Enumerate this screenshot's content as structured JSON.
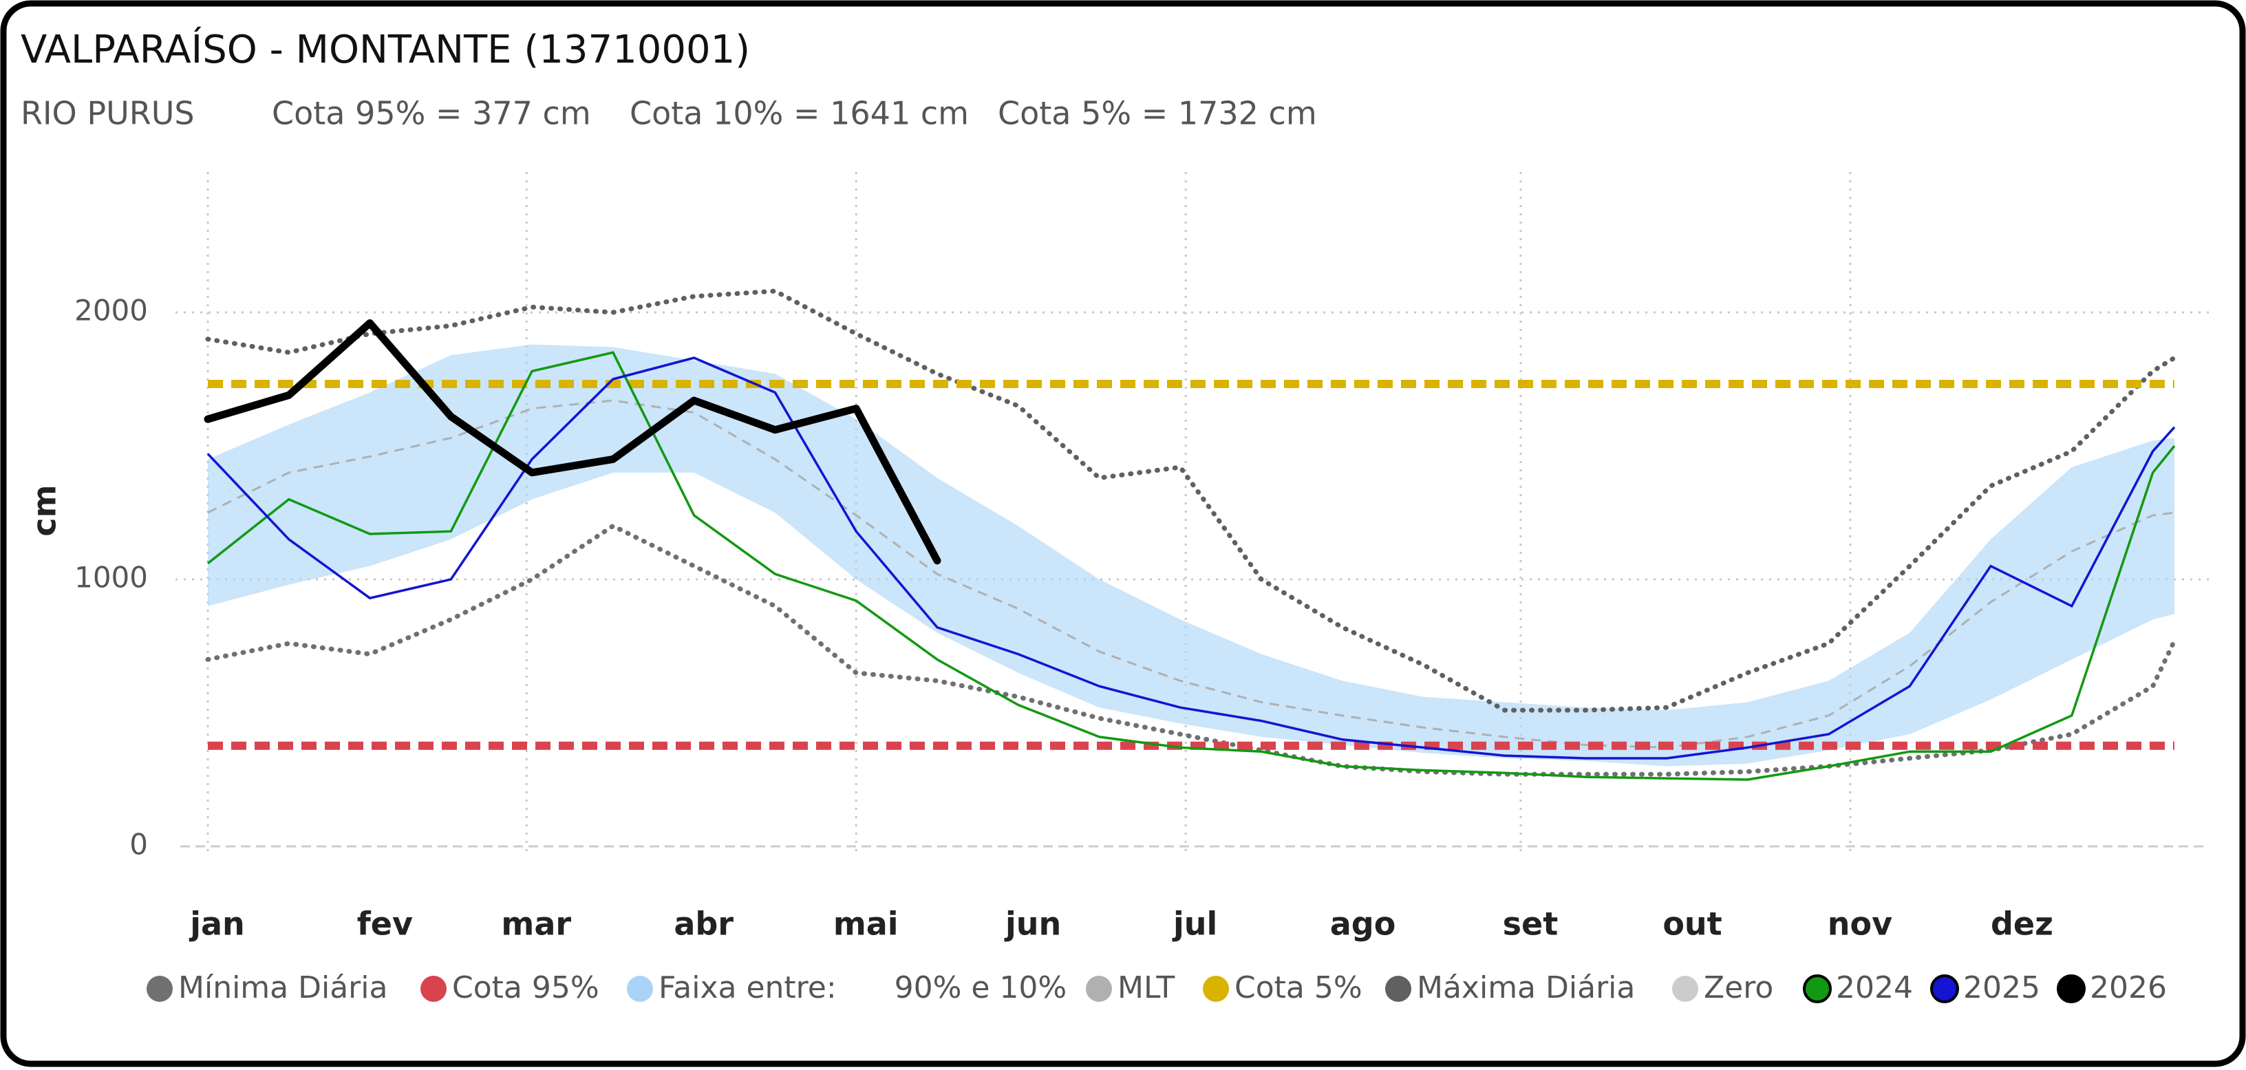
{
  "chart_data": {
    "type": "line",
    "title": "VALPARAÍSO - MONTANTE (13710001)",
    "subtitle": [
      "RIO PURUS",
      "Cota 95% = 377 cm",
      "Cota 10% = 1641 cm",
      "Cota 5% = 1732 cm"
    ],
    "y_label": "cm",
    "x": [
      1,
      16,
      31,
      46,
      61,
      76,
      91,
      106,
      121,
      136,
      151,
      166,
      181,
      196,
      211,
      226,
      241,
      256,
      271,
      286,
      301,
      316,
      331,
      346,
      361,
      365
    ],
    "xlim": [
      1,
      365
    ],
    "xticks": [
      {
        "value": 1,
        "label": "jan"
      },
      {
        "value": 32,
        "label": "fev"
      },
      {
        "value": 60,
        "label": "mar"
      },
      {
        "value": 91,
        "label": "abr"
      },
      {
        "value": 121,
        "label": "mai"
      },
      {
        "value": 152,
        "label": "jun"
      },
      {
        "value": 182,
        "label": "jul"
      },
      {
        "value": 213,
        "label": "ago"
      },
      {
        "value": 244,
        "label": "set"
      },
      {
        "value": 274,
        "label": "out"
      },
      {
        "value": 305,
        "label": "nov"
      },
      {
        "value": 335,
        "label": "dez"
      }
    ],
    "ylim": [
      0,
      2500
    ],
    "yticks": [
      0,
      1000,
      2000
    ],
    "grid": true,
    "series": [
      {
        "name": "Mínima Diária",
        "color": "#707070",
        "style": "dotted",
        "values": [
          700,
          760,
          720,
          850,
          1000,
          1200,
          1050,
          900,
          650,
          620,
          560,
          480,
          420,
          360,
          300,
          280,
          270,
          270,
          270,
          280,
          300,
          330,
          360,
          420,
          600,
          770
        ]
      },
      {
        "name": "Cota 95%",
        "color": "#d9434e",
        "style": "hline",
        "value": 377
      },
      {
        "name": "Faixa entre:      90% e 10%",
        "color": "#a9d3f7",
        "style": "band",
        "upper": [
          1450,
          1580,
          1700,
          1840,
          1880,
          1870,
          1820,
          1770,
          1600,
          1380,
          1200,
          1000,
          850,
          720,
          620,
          560,
          540,
          520,
          510,
          540,
          620,
          800,
          1150,
          1420,
          1520,
          1530
        ],
        "lower": [
          900,
          980,
          1050,
          1150,
          1300,
          1400,
          1400,
          1250,
          1000,
          800,
          650,
          520,
          460,
          410,
          380,
          350,
          330,
          320,
          300,
          310,
          360,
          420,
          550,
          700,
          850,
          870
        ]
      },
      {
        "name": "MLT",
        "color": "#b0b0b0",
        "style": "dashed",
        "values": [
          1250,
          1400,
          1460,
          1530,
          1640,
          1670,
          1625,
          1450,
          1240,
          1020,
          890,
          730,
          620,
          540,
          490,
          445,
          410,
          380,
          370,
          410,
          490,
          675,
          915,
          1105,
          1240,
          1250
        ]
      },
      {
        "name": "Cota 5%",
        "color": "#d9b300",
        "style": "hline",
        "value": 1732
      },
      {
        "name": "Máxima Diária",
        "color": "#606060",
        "style": "dotted",
        "values": [
          1900,
          1850,
          1920,
          1950,
          2020,
          2000,
          2060,
          2080,
          1920,
          1770,
          1650,
          1380,
          1420,
          1000,
          820,
          680,
          510,
          510,
          520,
          650,
          760,
          1050,
          1350,
          1480,
          1780,
          1830
        ]
      },
      {
        "name": "Zero",
        "color": "#cccccc",
        "style": "zero",
        "value": 0
      },
      {
        "name": "2024",
        "color": "#119a11",
        "style": "line",
        "values": [
          1060,
          1300,
          1170,
          1180,
          1780,
          1850,
          1240,
          1020,
          920,
          700,
          530,
          410,
          370,
          355,
          300,
          285,
          275,
          260,
          255,
          250,
          300,
          355,
          355,
          490,
          1400,
          1500
        ]
      },
      {
        "name": "2025",
        "color": "#1414d2",
        "style": "line",
        "values": [
          1470,
          1150,
          930,
          1000,
          1450,
          1750,
          1830,
          1700,
          1180,
          820,
          720,
          600,
          520,
          470,
          400,
          370,
          340,
          330,
          330,
          370,
          420,
          600,
          1050,
          900,
          1480,
          1570
        ]
      },
      {
        "name": "2026",
        "color": "#000000",
        "style": "thick-line",
        "values": [
          1600,
          1690,
          1960,
          1610,
          1400,
          1450,
          1670,
          1560,
          1640,
          1070,
          null,
          null,
          null,
          null,
          null,
          null,
          null,
          null,
          null,
          null,
          null,
          null,
          null,
          null,
          null,
          null
        ]
      }
    ]
  }
}
